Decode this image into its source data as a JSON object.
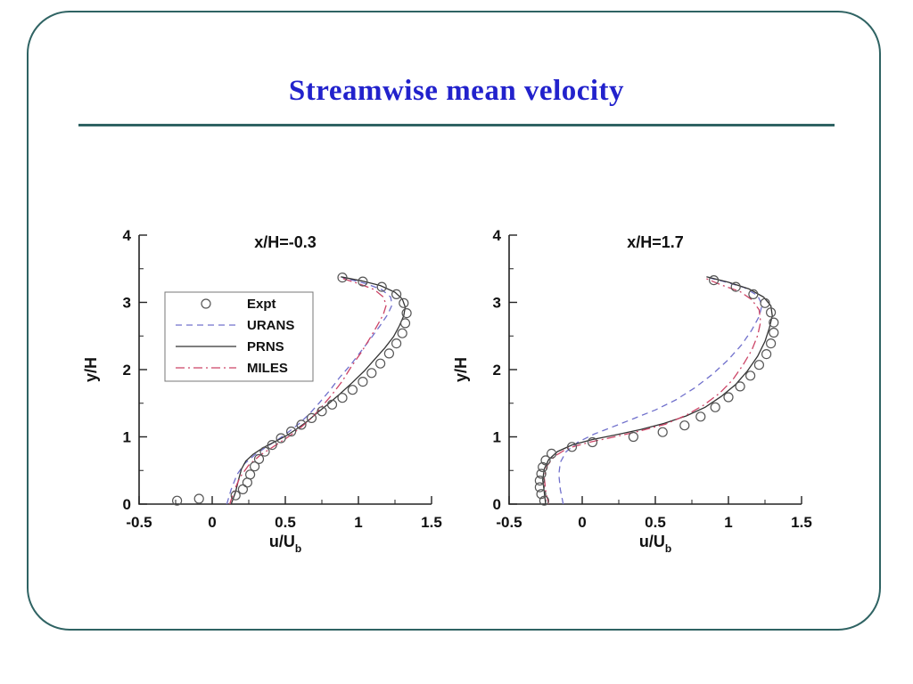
{
  "slide": {
    "title": "Streamwise mean velocity",
    "title_color": "#2222cc",
    "frame_color": "#2f6363",
    "rule_color": "#2f6363"
  },
  "chart_data": [
    {
      "type": "line",
      "title": "x/H=-0.3",
      "xlabel": "u/U",
      "xlabel_sub": "b",
      "ylabel": "y/H",
      "xlim": [
        -0.5,
        1.5
      ],
      "ylim": [
        0,
        4
      ],
      "xticks": [
        -0.5,
        0,
        0.5,
        1,
        1.5
      ],
      "xtick_labels": [
        "-0.5",
        "0",
        "0.5",
        "1",
        "1.5"
      ],
      "yticks": [
        0,
        1,
        2,
        3,
        4
      ],
      "ytick_labels": [
        "0",
        "1",
        "2",
        "3",
        "4"
      ],
      "x_minor_step": 0.25,
      "y_minor_step": 0.5,
      "legend_show": true,
      "grid": false,
      "series": [
        {
          "name": "Expt",
          "kind": "scatter",
          "color": "#555555",
          "points": [
            [
              -0.24,
              0.05
            ],
            [
              -0.09,
              0.08
            ],
            [
              0.16,
              0.13
            ],
            [
              0.21,
              0.22
            ],
            [
              0.24,
              0.32
            ],
            [
              0.26,
              0.44
            ],
            [
              0.29,
              0.56
            ],
            [
              0.32,
              0.67
            ],
            [
              0.36,
              0.78
            ],
            [
              0.41,
              0.88
            ],
            [
              0.47,
              0.98
            ],
            [
              0.54,
              1.08
            ],
            [
              0.61,
              1.18
            ],
            [
              0.68,
              1.28
            ],
            [
              0.75,
              1.38
            ],
            [
              0.82,
              1.48
            ],
            [
              0.89,
              1.58
            ],
            [
              0.96,
              1.7
            ],
            [
              1.03,
              1.82
            ],
            [
              1.09,
              1.95
            ],
            [
              1.15,
              2.09
            ],
            [
              1.21,
              2.24
            ],
            [
              1.26,
              2.39
            ],
            [
              1.3,
              2.54
            ],
            [
              1.32,
              2.69
            ],
            [
              1.33,
              2.84
            ],
            [
              1.31,
              2.99
            ],
            [
              1.26,
              3.12
            ],
            [
              1.16,
              3.23
            ],
            [
              1.03,
              3.31
            ],
            [
              0.89,
              3.37
            ]
          ]
        },
        {
          "name": "URANS",
          "kind": "line",
          "dash": "dashed",
          "color": "#7070cc",
          "points": [
            [
              0.1,
              0.0
            ],
            [
              0.13,
              0.22
            ],
            [
              0.17,
              0.44
            ],
            [
              0.22,
              0.6
            ],
            [
              0.29,
              0.73
            ],
            [
              0.37,
              0.85
            ],
            [
              0.45,
              0.96
            ],
            [
              0.52,
              1.07
            ],
            [
              0.59,
              1.19
            ],
            [
              0.66,
              1.33
            ],
            [
              0.73,
              1.5
            ],
            [
              0.8,
              1.68
            ],
            [
              0.87,
              1.88
            ],
            [
              0.95,
              2.08
            ],
            [
              1.02,
              2.28
            ],
            [
              1.09,
              2.48
            ],
            [
              1.15,
              2.66
            ],
            [
              1.2,
              2.82
            ],
            [
              1.23,
              2.96
            ],
            [
              1.22,
              3.08
            ],
            [
              1.16,
              3.19
            ],
            [
              1.05,
              3.28
            ],
            [
              0.89,
              3.37
            ]
          ]
        },
        {
          "name": "PRNS",
          "kind": "line",
          "dash": "solid",
          "color": "#333333",
          "points": [
            [
              0.13,
              0.0
            ],
            [
              0.16,
              0.18
            ],
            [
              0.18,
              0.36
            ],
            [
              0.2,
              0.52
            ],
            [
              0.23,
              0.64
            ],
            [
              0.28,
              0.74
            ],
            [
              0.35,
              0.84
            ],
            [
              0.43,
              0.93
            ],
            [
              0.51,
              1.02
            ],
            [
              0.58,
              1.12
            ],
            [
              0.65,
              1.23
            ],
            [
              0.72,
              1.36
            ],
            [
              0.8,
              1.5
            ],
            [
              0.88,
              1.65
            ],
            [
              0.96,
              1.81
            ],
            [
              1.04,
              1.98
            ],
            [
              1.11,
              2.15
            ],
            [
              1.18,
              2.32
            ],
            [
              1.24,
              2.49
            ],
            [
              1.28,
              2.65
            ],
            [
              1.31,
              2.8
            ],
            [
              1.32,
              2.93
            ],
            [
              1.3,
              3.05
            ],
            [
              1.25,
              3.15
            ],
            [
              1.15,
              3.25
            ],
            [
              1.02,
              3.32
            ],
            [
              0.88,
              3.38
            ]
          ]
        },
        {
          "name": "MILES",
          "kind": "line",
          "dash": "dashdot",
          "color": "#cc4466",
          "points": [
            [
              0.12,
              0.0
            ],
            [
              0.15,
              0.2
            ],
            [
              0.19,
              0.4
            ],
            [
              0.25,
              0.58
            ],
            [
              0.33,
              0.73
            ],
            [
              0.43,
              0.87
            ],
            [
              0.52,
              1.0
            ],
            [
              0.6,
              1.13
            ],
            [
              0.68,
              1.28
            ],
            [
              0.75,
              1.45
            ],
            [
              0.82,
              1.63
            ],
            [
              0.89,
              1.83
            ],
            [
              0.95,
              2.04
            ],
            [
              1.02,
              2.26
            ],
            [
              1.08,
              2.47
            ],
            [
              1.13,
              2.66
            ],
            [
              1.17,
              2.82
            ],
            [
              1.19,
              2.96
            ],
            [
              1.17,
              3.08
            ],
            [
              1.11,
              3.19
            ],
            [
              1.0,
              3.28
            ],
            [
              0.87,
              3.37
            ]
          ]
        }
      ]
    },
    {
      "type": "line",
      "title": "x/H=1.7",
      "xlabel": "u/U",
      "xlabel_sub": "b",
      "ylabel": "y/H",
      "xlim": [
        -0.5,
        1.5
      ],
      "ylim": [
        0,
        4
      ],
      "xticks": [
        -0.5,
        0,
        0.5,
        1,
        1.5
      ],
      "xtick_labels": [
        "-0.5",
        "0",
        "0.5",
        "1",
        "1.5"
      ],
      "yticks": [
        0,
        1,
        2,
        3,
        4
      ],
      "ytick_labels": [
        "0",
        "1",
        "2",
        "3",
        "4"
      ],
      "x_minor_step": 0.25,
      "y_minor_step": 0.5,
      "legend_show": false,
      "grid": false,
      "series": [
        {
          "name": "Expt",
          "kind": "scatter",
          "color": "#555555",
          "points": [
            [
              -0.26,
              0.05
            ],
            [
              -0.28,
              0.15
            ],
            [
              -0.29,
              0.25
            ],
            [
              -0.29,
              0.35
            ],
            [
              -0.28,
              0.45
            ],
            [
              -0.27,
              0.55
            ],
            [
              -0.25,
              0.65
            ],
            [
              -0.21,
              0.75
            ],
            [
              -0.07,
              0.85
            ],
            [
              0.07,
              0.92
            ],
            [
              0.35,
              1.0
            ],
            [
              0.55,
              1.07
            ],
            [
              0.7,
              1.17
            ],
            [
              0.81,
              1.3
            ],
            [
              0.91,
              1.44
            ],
            [
              1.0,
              1.59
            ],
            [
              1.08,
              1.75
            ],
            [
              1.15,
              1.91
            ],
            [
              1.21,
              2.07
            ],
            [
              1.26,
              2.23
            ],
            [
              1.29,
              2.39
            ],
            [
              1.31,
              2.55
            ],
            [
              1.31,
              2.7
            ],
            [
              1.29,
              2.85
            ],
            [
              1.25,
              2.99
            ],
            [
              1.17,
              3.12
            ],
            [
              1.05,
              3.23
            ],
            [
              0.9,
              3.33
            ]
          ]
        },
        {
          "name": "URANS",
          "kind": "line",
          "dash": "dashed",
          "color": "#7070cc",
          "points": [
            [
              -0.13,
              0.0
            ],
            [
              -0.15,
              0.22
            ],
            [
              -0.16,
              0.44
            ],
            [
              -0.15,
              0.62
            ],
            [
              -0.11,
              0.78
            ],
            [
              -0.03,
              0.92
            ],
            [
              0.08,
              1.04
            ],
            [
              0.21,
              1.15
            ],
            [
              0.35,
              1.27
            ],
            [
              0.5,
              1.4
            ],
            [
              0.64,
              1.55
            ],
            [
              0.77,
              1.73
            ],
            [
              0.89,
              1.93
            ],
            [
              1.0,
              2.15
            ],
            [
              1.09,
              2.37
            ],
            [
              1.16,
              2.59
            ],
            [
              1.21,
              2.79
            ],
            [
              1.23,
              2.96
            ],
            [
              1.2,
              3.1
            ],
            [
              1.11,
              3.22
            ],
            [
              0.97,
              3.31
            ],
            [
              0.84,
              3.38
            ]
          ]
        },
        {
          "name": "PRNS",
          "kind": "line",
          "dash": "solid",
          "color": "#333333",
          "points": [
            [
              -0.25,
              0.0
            ],
            [
              -0.26,
              0.18
            ],
            [
              -0.27,
              0.36
            ],
            [
              -0.26,
              0.52
            ],
            [
              -0.23,
              0.66
            ],
            [
              -0.17,
              0.78
            ],
            [
              -0.07,
              0.88
            ],
            [
              0.07,
              0.96
            ],
            [
              0.23,
              1.03
            ],
            [
              0.4,
              1.11
            ],
            [
              0.56,
              1.2
            ],
            [
              0.71,
              1.31
            ],
            [
              0.84,
              1.44
            ],
            [
              0.95,
              1.6
            ],
            [
              1.05,
              1.78
            ],
            [
              1.13,
              1.98
            ],
            [
              1.2,
              2.2
            ],
            [
              1.25,
              2.42
            ],
            [
              1.28,
              2.62
            ],
            [
              1.3,
              2.8
            ],
            [
              1.29,
              2.95
            ],
            [
              1.24,
              3.08
            ],
            [
              1.14,
              3.2
            ],
            [
              1.0,
              3.3
            ],
            [
              0.85,
              3.38
            ]
          ]
        },
        {
          "name": "MILES",
          "kind": "line",
          "dash": "dashdot",
          "color": "#cc4466",
          "points": [
            [
              -0.23,
              0.0
            ],
            [
              -0.25,
              0.2
            ],
            [
              -0.26,
              0.4
            ],
            [
              -0.24,
              0.57
            ],
            [
              -0.19,
              0.71
            ],
            [
              -0.1,
              0.83
            ],
            [
              0.05,
              0.92
            ],
            [
              0.22,
              1.0
            ],
            [
              0.4,
              1.09
            ],
            [
              0.57,
              1.19
            ],
            [
              0.71,
              1.32
            ],
            [
              0.83,
              1.47
            ],
            [
              0.94,
              1.65
            ],
            [
              1.03,
              1.85
            ],
            [
              1.1,
              2.07
            ],
            [
              1.16,
              2.29
            ],
            [
              1.2,
              2.51
            ],
            [
              1.22,
              2.71
            ],
            [
              1.21,
              2.89
            ],
            [
              1.16,
              3.04
            ],
            [
              1.08,
              3.16
            ],
            [
              0.95,
              3.26
            ],
            [
              0.83,
              3.37
            ]
          ]
        }
      ]
    }
  ]
}
